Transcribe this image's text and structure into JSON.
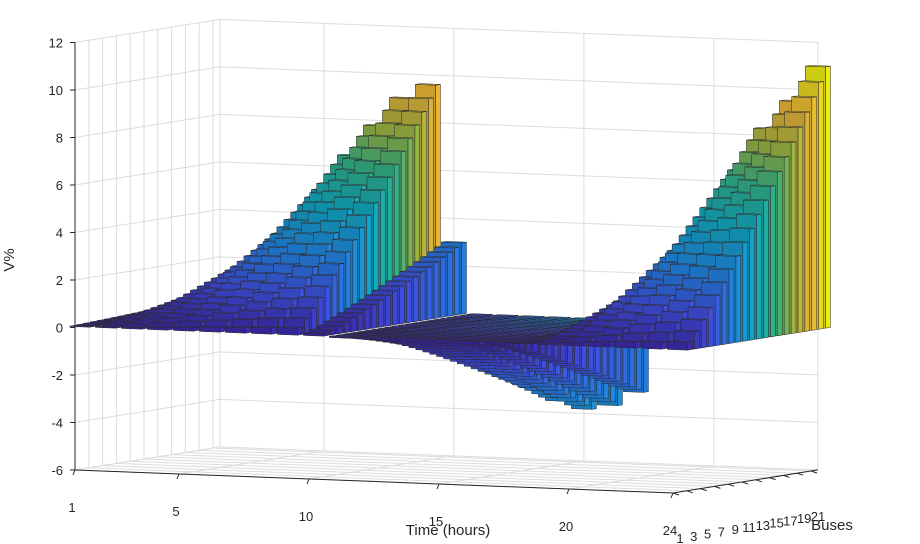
{
  "chart_data": {
    "type": "bar3d",
    "title": "",
    "xlabel": "Time (hours)",
    "ylabel": "Buses",
    "zlabel": "V%",
    "x_ticks": [
      "1",
      "5",
      "10",
      "15",
      "20",
      "24"
    ],
    "y_ticks": [
      "1",
      "3",
      "5",
      "7",
      "9",
      "11",
      "13",
      "15",
      "17",
      "19",
      "21"
    ],
    "z_ticks": [
      "12",
      "10",
      "8",
      "6",
      "4",
      "2",
      "0",
      "-2",
      "-4",
      "-6"
    ],
    "zlim": [
      -6,
      12
    ],
    "hours": [
      1,
      2,
      3,
      4,
      5,
      6,
      7,
      8,
      9,
      10,
      11,
      12,
      13,
      14,
      15,
      16,
      17,
      18,
      19,
      20,
      21,
      22,
      23,
      24
    ],
    "buses": [
      1,
      2,
      3,
      4,
      5,
      6,
      7,
      8,
      9,
      10,
      11,
      12,
      13,
      14,
      15,
      16,
      17,
      18,
      19,
      20,
      21,
      22
    ],
    "max_voltage_rise_by_hour": [
      0.3,
      1.2,
      2.4,
      3.6,
      5.0,
      6.5,
      7.8,
      9.0,
      9.6,
      3.0,
      -1.5,
      -2.0,
      -3.0,
      -3.5,
      -3.8,
      -3.6,
      -3.0,
      0.5,
      2.5,
      4.5,
      6.5,
      8.3,
      9.5,
      11.0
    ],
    "colormap": "parula",
    "grid": true,
    "legend": false
  }
}
